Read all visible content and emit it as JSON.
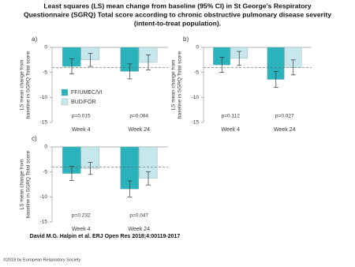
{
  "title": [
    "Least squares (LS) mean change from baseline (95% CI) in St George's Respiratory",
    "Questionnaire (SGRQ) Total score according to chronic obstructive pulmonary disease severity",
    "(intent-to-treat population)."
  ],
  "source": "David M.G. Halpin et al. ERJ Open Res 2018;4:00119-2017",
  "copyright": "©2018 by European Respiratory Society",
  "chart_data": [
    {
      "type": "bar",
      "panel_label": "a)",
      "ylabel": [
        "LS mean change from",
        "baseline in SGRQ Total score"
      ],
      "categories": [
        "Week 4",
        "Week 24"
      ],
      "series": [
        {
          "name": "FF/UMEC/VI",
          "color": "#2ab3bc",
          "values": [
            -3.8,
            -4.8
          ],
          "errors": [
            1.5,
            1.5
          ]
        },
        {
          "name": "BUD/FOR",
          "color": "#c6e7eb",
          "values": [
            -2.5,
            -3.0
          ],
          "errors": [
            1.3,
            1.5
          ]
        }
      ],
      "annotations": [
        "p=0.015",
        "p=0.084"
      ],
      "reference_line": -4,
      "ylim": [
        0,
        -15
      ],
      "yticks": [
        0,
        -5,
        -10,
        -15
      ],
      "legend": "lower left"
    },
    {
      "type": "bar",
      "panel_label": "b)",
      "ylabel": [
        "LS mean change from",
        "baseline in SGRQ Total score"
      ],
      "categories": [
        "Week 4",
        "Week 24"
      ],
      "series": [
        {
          "color": "#2ab3bc",
          "values": [
            -3.5,
            -6.4
          ],
          "errors": [
            1.5,
            1.6
          ]
        },
        {
          "color": "#c6e7eb",
          "values": [
            -2.2,
            -4.0
          ],
          "errors": [
            1.4,
            1.5
          ]
        }
      ],
      "annotations": [
        "p=0.112",
        "p=0.027"
      ],
      "reference_line": -4,
      "ylim": [
        0,
        -15
      ],
      "yticks": [
        0,
        -5,
        -10,
        -15
      ]
    },
    {
      "type": "bar",
      "panel_label": "c)",
      "ylabel": [
        "LS mean change from",
        "baseline in SGRQ Total score"
      ],
      "categories": [
        "Week 4",
        "Week 24"
      ],
      "series": [
        {
          "color": "#2ab3bc",
          "values": [
            -5.3,
            -8.4
          ],
          "errors": [
            1.4,
            1.6
          ]
        },
        {
          "color": "#c6e7eb",
          "values": [
            -4.3,
            -6.3
          ],
          "errors": [
            1.2,
            1.3
          ]
        }
      ],
      "annotations": [
        "p=0.232",
        "p=0.047"
      ],
      "reference_line": -4,
      "ylim": [
        0,
        -15
      ],
      "yticks": [
        0,
        -5,
        -10,
        -15
      ]
    }
  ]
}
